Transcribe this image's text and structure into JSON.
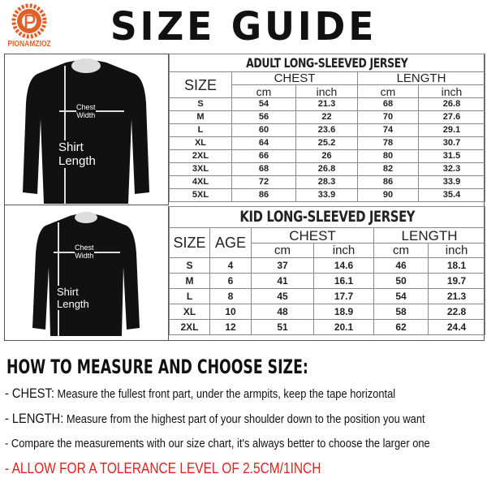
{
  "brand": {
    "name": "PIONAMZIOZ",
    "color": "#e0602a"
  },
  "title": "SIZE GUIDE",
  "diagram": {
    "chest_label_1": "Chest",
    "chest_label_2": "Width",
    "length_label_1": "Shirt",
    "length_label_2": "Length"
  },
  "adult": {
    "title": "ADULT LONG-SLEEVED JERSEY",
    "size_header": "SIZE",
    "chest_header": "CHEST",
    "length_header": "LENGTH",
    "cm": "cm",
    "inch": "inch",
    "rows": [
      [
        "S",
        "54",
        "21.3",
        "68",
        "26.8"
      ],
      [
        "M",
        "56",
        "22",
        "70",
        "27.6"
      ],
      [
        "L",
        "60",
        "23.6",
        "74",
        "29.1"
      ],
      [
        "XL",
        "64",
        "25.2",
        "78",
        "30.7"
      ],
      [
        "2XL",
        "66",
        "26",
        "80",
        "31.5"
      ],
      [
        "3XL",
        "68",
        "26.8",
        "82",
        "32.3"
      ],
      [
        "4XL",
        "72",
        "28.3",
        "86",
        "33.9"
      ],
      [
        "5XL",
        "86",
        "33.9",
        "90",
        "35.4"
      ]
    ]
  },
  "kid": {
    "title": "KID LONG-SLEEVED JERSEY",
    "size_header": "SIZE",
    "age_header": "AGE",
    "chest_header": "CHEST",
    "length_header": "LENGTH",
    "cm": "cm",
    "inch": "inch",
    "rows": [
      [
        "S",
        "4",
        "37",
        "14.6",
        "46",
        "18.1"
      ],
      [
        "M",
        "6",
        "41",
        "16.1",
        "50",
        "19.7"
      ],
      [
        "L",
        "8",
        "45",
        "17.7",
        "54",
        "21.3"
      ],
      [
        "XL",
        "10",
        "48",
        "18.9",
        "58",
        "22.8"
      ],
      [
        "2XL",
        "12",
        "51",
        "20.1",
        "62",
        "24.4"
      ]
    ]
  },
  "howto": {
    "heading": "HOW TO MEASURE AND CHOOSE SIZE:",
    "chest_label": "- CHEST:",
    "chest_text": "Measure the fullest front part, under the armpits, keep the tape horizontal",
    "length_label": "- LENGTH:",
    "length_text": "Measure from the highest part of your shoulder down to the position you want",
    "compare": "- Compare the measurements with our size chart, it's always better to choose the larger one",
    "tolerance": "- ALLOW FOR A TOLERANCE LEVEL OF 2.5CM/1INCH",
    "tolerance_color": "#e0201c"
  }
}
